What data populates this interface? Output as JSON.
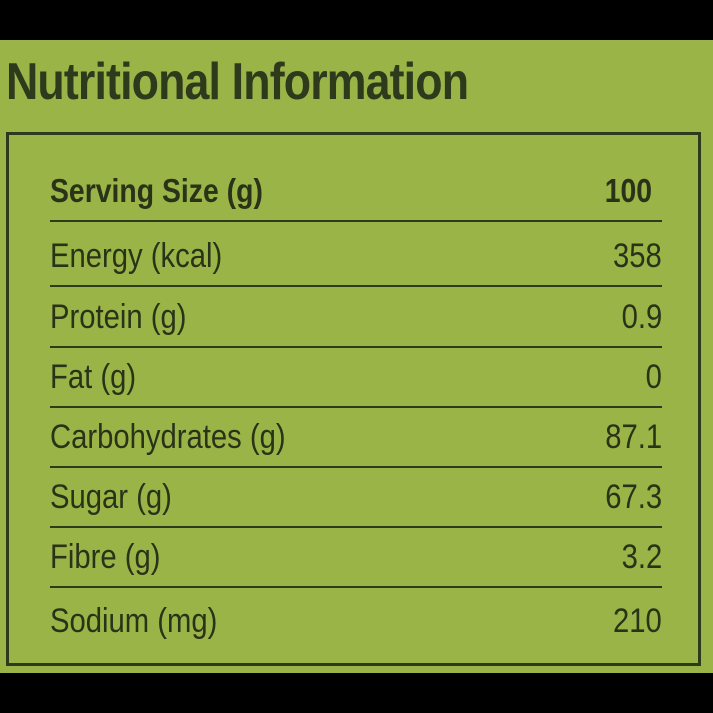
{
  "title": "Nutritional Information",
  "table": {
    "rows": [
      {
        "label": "Serving Size (g)",
        "value": "100"
      },
      {
        "label": "Energy (kcal)",
        "value": "358"
      },
      {
        "label": "Protein (g)",
        "value": "0.9"
      },
      {
        "label": "Fat (g)",
        "value": "0"
      },
      {
        "label": "Carbohydrates (g)",
        "value": "87.1"
      },
      {
        "label": "Sugar (g)",
        "value": "67.3"
      },
      {
        "label": "Fibre (g)",
        "value": "3.2"
      },
      {
        "label": "Sodium (mg)",
        "value": "210"
      }
    ]
  },
  "colors": {
    "background": "#9ab447",
    "border": "#2f3a1c",
    "text": "#2a3318",
    "letterbox": "#000000"
  }
}
